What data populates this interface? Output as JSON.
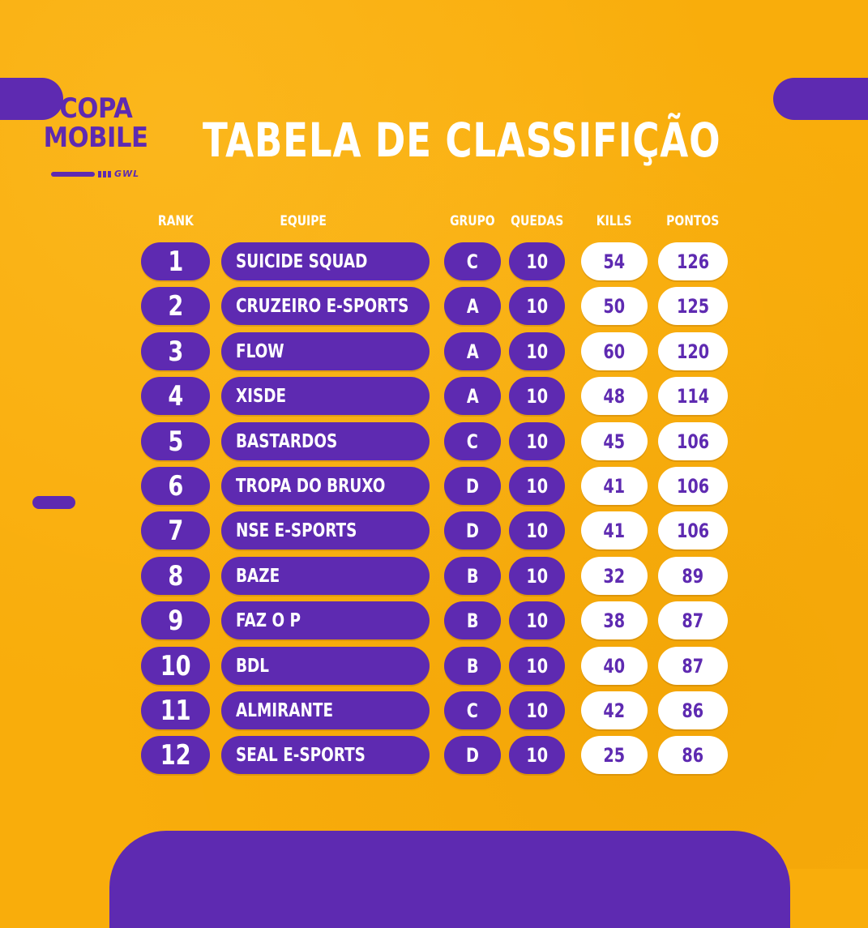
{
  "logo": {
    "line1": "COPA",
    "line2": "MOBILE",
    "tag": "GWL"
  },
  "title": "TABELA DE CLASSIFIÇÃO",
  "headers": {
    "rank": "RANK",
    "team": "EQUIPE",
    "group": "GRUPO",
    "drops": "QUEDAS",
    "kills": "KILLS",
    "points": "PONTOS"
  },
  "colors": {
    "background": "#f9ad0b",
    "purple": "#5e2ab1",
    "white": "#ffffff"
  },
  "rows": [
    {
      "rank": "1",
      "team": "SUICIDE SQUAD",
      "group": "C",
      "drops": "10",
      "kills": "54",
      "points": "126"
    },
    {
      "rank": "2",
      "team": "CRUZEIRO E-SPORTS",
      "group": "A",
      "drops": "10",
      "kills": "50",
      "points": "125"
    },
    {
      "rank": "3",
      "team": "FLOW",
      "group": "A",
      "drops": "10",
      "kills": "60",
      "points": "120"
    },
    {
      "rank": "4",
      "team": "XISDE",
      "group": "A",
      "drops": "10",
      "kills": "48",
      "points": "114"
    },
    {
      "rank": "5",
      "team": "BASTARDOS",
      "group": "C",
      "drops": "10",
      "kills": "45",
      "points": "106"
    },
    {
      "rank": "6",
      "team": "TROPA DO BRUXO",
      "group": "D",
      "drops": "10",
      "kills": "41",
      "points": "106"
    },
    {
      "rank": "7",
      "team": "NSE E-SPORTS",
      "group": "D",
      "drops": "10",
      "kills": "41",
      "points": "106"
    },
    {
      "rank": "8",
      "team": "BAZE",
      "group": "B",
      "drops": "10",
      "kills": "32",
      "points": "89"
    },
    {
      "rank": "9",
      "team": "FAZ O P",
      "group": "B",
      "drops": "10",
      "kills": "38",
      "points": "87"
    },
    {
      "rank": "10",
      "team": "BDL",
      "group": "B",
      "drops": "10",
      "kills": "40",
      "points": "87"
    },
    {
      "rank": "11",
      "team": "ALMIRANTE",
      "group": "C",
      "drops": "10",
      "kills": "42",
      "points": "86"
    },
    {
      "rank": "12",
      "team": "SEAL E-SPORTS",
      "group": "D",
      "drops": "10",
      "kills": "25",
      "points": "86"
    }
  ]
}
